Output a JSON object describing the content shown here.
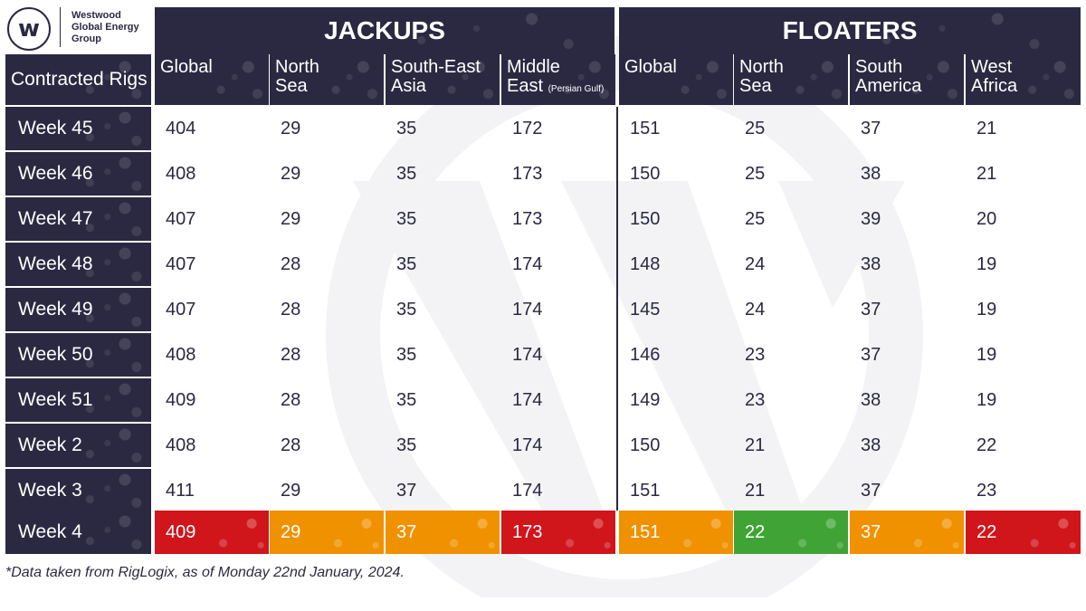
{
  "logo": {
    "mark": "w",
    "name_lines": [
      "Westwood",
      "Global Energy",
      "Group"
    ]
  },
  "groups": {
    "jackups": "JACKUPS",
    "floaters": "FLOATERS"
  },
  "corner_label": "Contracted Rigs",
  "columns": [
    {
      "group": "jackups",
      "label": "Global",
      "label2": "",
      "sub": ""
    },
    {
      "group": "jackups",
      "label": "North",
      "label2": "Sea",
      "sub": ""
    },
    {
      "group": "jackups",
      "label": "South-East",
      "label2": "Asia",
      "sub": ""
    },
    {
      "group": "jackups",
      "label": "Middle",
      "label2": "East",
      "sub": "(Persian Gulf)"
    },
    {
      "group": "floaters",
      "label": "Global",
      "label2": "",
      "sub": ""
    },
    {
      "group": "floaters",
      "label": "North",
      "label2": "Sea",
      "sub": ""
    },
    {
      "group": "floaters",
      "label": "South",
      "label2": "America",
      "sub": ""
    },
    {
      "group": "floaters",
      "label": "West",
      "label2": "Africa",
      "sub": ""
    }
  ],
  "rows": [
    {
      "week": "Week 45",
      "values": [
        "404",
        "29",
        "35",
        "172",
        "151",
        "25",
        "37",
        "21"
      ]
    },
    {
      "week": "Week 46",
      "values": [
        "408",
        "29",
        "35",
        "173",
        "150",
        "25",
        "38",
        "21"
      ]
    },
    {
      "week": "Week 47",
      "values": [
        "407",
        "29",
        "35",
        "173",
        "150",
        "25",
        "39",
        "20"
      ]
    },
    {
      "week": "Week 48",
      "values": [
        "407",
        "28",
        "35",
        "174",
        "148",
        "24",
        "38",
        "19"
      ]
    },
    {
      "week": "Week 49",
      "values": [
        "407",
        "28",
        "35",
        "174",
        "145",
        "24",
        "37",
        "19"
      ]
    },
    {
      "week": "Week 50",
      "values": [
        "408",
        "28",
        "35",
        "174",
        "146",
        "23",
        "37",
        "19"
      ]
    },
    {
      "week": "Week 51",
      "values": [
        "409",
        "28",
        "35",
        "174",
        "149",
        "23",
        "38",
        "19"
      ]
    },
    {
      "week": "Week 2",
      "values": [
        "408",
        "28",
        "35",
        "174",
        "150",
        "21",
        "38",
        "22"
      ]
    },
    {
      "week": "Week 3",
      "values": [
        "411",
        "29",
        "37",
        "174",
        "151",
        "21",
        "37",
        "23"
      ]
    }
  ],
  "highlight_row": {
    "week": "Week 4",
    "values": [
      "409",
      "29",
      "37",
      "173",
      "151",
      "22",
      "37",
      "22"
    ],
    "status": [
      "red",
      "orange",
      "orange",
      "red",
      "orange",
      "green",
      "orange",
      "red"
    ]
  },
  "colors": {
    "navy": "#2b2942",
    "red": "#d0151b",
    "orange": "#f09100",
    "green": "#3fa435"
  },
  "footnote": "*Data taken from RigLogix, as of Monday 22nd January, 2024."
}
